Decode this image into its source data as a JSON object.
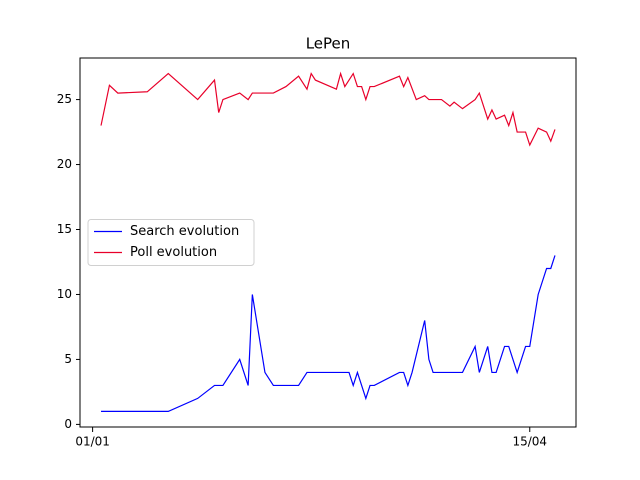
{
  "chart_data": {
    "type": "line",
    "title": "LePen",
    "series": [
      {
        "name": "Search evolution",
        "color": "#0000ff",
        "x": [
          "03/01",
          "19/01",
          "26/01",
          "30/01",
          "01/02",
          "05/02",
          "07/02",
          "08/02",
          "11/02",
          "13/02",
          "19/02",
          "21/02",
          "03/03",
          "04/03",
          "05/03",
          "07/03",
          "08/03",
          "09/03",
          "15/03",
          "16/03",
          "17/03",
          "18/03",
          "21/03",
          "22/03",
          "23/03",
          "30/03",
          "02/04",
          "03/04",
          "05/04",
          "06/04",
          "07/04",
          "09/04",
          "10/04",
          "12/04",
          "14/04",
          "15/04",
          "17/04",
          "19/04",
          "20/04",
          "21/04"
        ],
        "values": [
          1,
          1,
          2,
          3,
          3,
          5,
          3,
          10,
          4,
          3,
          3,
          4,
          4,
          3,
          4,
          2,
          3,
          3,
          4,
          4,
          3,
          4,
          8,
          5,
          4,
          4,
          6,
          4,
          6,
          4,
          4,
          6,
          6,
          4,
          6,
          6,
          10,
          12,
          12,
          13
        ]
      },
      {
        "name": "Poll evolution",
        "color": "#e8002a",
        "x": [
          "03/01",
          "05/01",
          "07/01",
          "14/01",
          "19/01",
          "26/01",
          "30/01",
          "31/01",
          "01/02",
          "05/02",
          "07/02",
          "08/02",
          "13/02",
          "16/02",
          "19/02",
          "21/02",
          "22/02",
          "23/02",
          "28/02",
          "01/03",
          "02/03",
          "04/03",
          "05/03",
          "06/03",
          "07/03",
          "08/03",
          "09/03",
          "15/03",
          "16/03",
          "17/03",
          "19/03",
          "21/03",
          "22/03",
          "25/03",
          "27/03",
          "28/03",
          "30/03",
          "02/04",
          "03/04",
          "05/04",
          "06/04",
          "07/04",
          "09/04",
          "10/04",
          "11/04",
          "12/04",
          "14/04",
          "15/04",
          "17/04",
          "19/04",
          "20/04",
          "21/04"
        ],
        "values": [
          23,
          26.1,
          25.5,
          25.6,
          27,
          25,
          26.5,
          24,
          25,
          25.5,
          25,
          25.5,
          25.5,
          26,
          26.8,
          25.8,
          27,
          26.5,
          25.8,
          27,
          26,
          27,
          26,
          26,
          25,
          26,
          26,
          26.8,
          26,
          26.7,
          25,
          25.3,
          25,
          25,
          24.5,
          24.8,
          24.3,
          25,
          25.5,
          23.5,
          24.2,
          23.5,
          23.8,
          23,
          24,
          22.5,
          22.5,
          21.5,
          22.8,
          22.5,
          21.8,
          22.7
        ]
      }
    ],
    "xlim": [
      "29/12",
      "26/04"
    ],
    "xticks": [
      "01/01",
      "15/04"
    ],
    "ylim": [
      -0.2,
      28.2
    ],
    "yticks": [
      0,
      5,
      10,
      15,
      20,
      25
    ],
    "legend": "center left"
  }
}
